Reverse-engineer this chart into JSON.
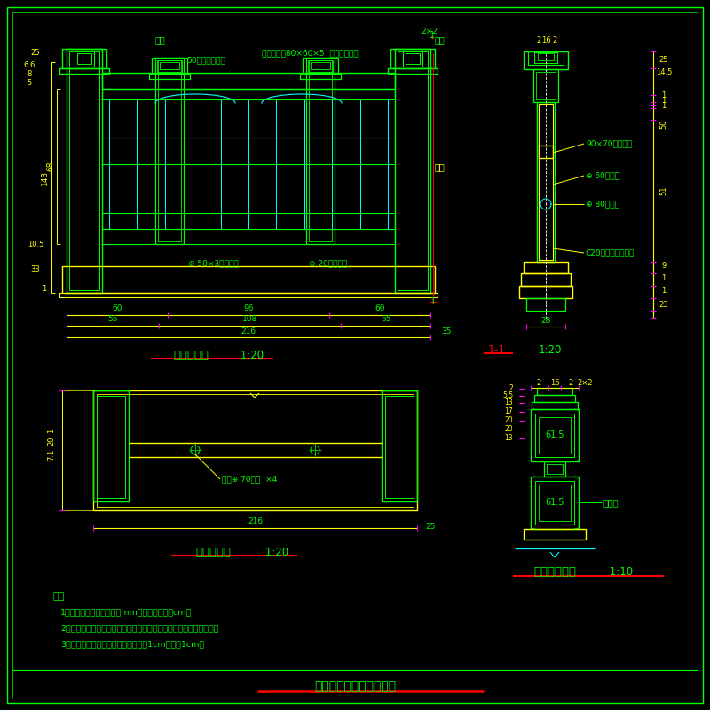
{
  "bg_color": "#000000",
  "lc": "#00FF00",
  "dc": "#FFFF00",
  "cc": "#00FFFF",
  "rc": "#FF0000",
  "mc": "#FF00FF",
  "tc": "#00FF00",
  "border_lw": 1.0,
  "notes": [
    "注：",
    "1、单位：除钔管及孔径以mm计外，其余均为cm。",
    "2、栏杆柱材料采用仿白玉，四槽内雕花，具体图案与设计人员商定。",
    "3、栏杆在直角处应打磨、抓光，半径1cm，四東1cm。"
  ],
  "title_text": "钔结构拱桥施工图（九）"
}
